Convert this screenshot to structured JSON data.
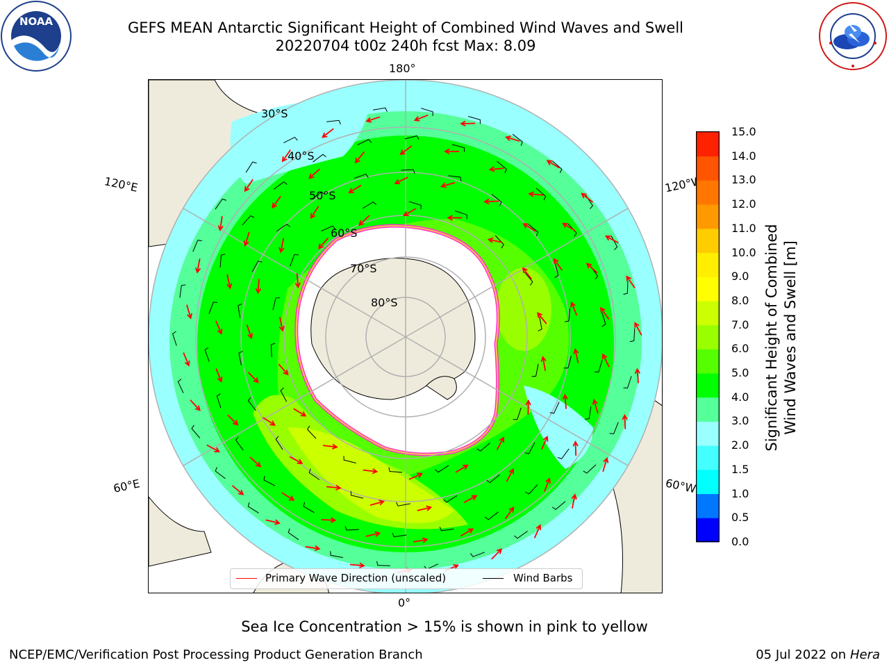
{
  "header": {
    "title_line1": "GEFS MEAN Antarctic Significant Height of Combined Wind Waves and Swell",
    "title_line2": "20220704 t00z 240h fcst   Max: 8.09"
  },
  "logos": {
    "left": "NOAA",
    "left_ring_text": "NATIONAL OCEANIC AND ATMOSPHERIC ADMINISTRATION · U.S. DEPARTMENT OF COMMERCE",
    "right_ring_text": "NATIONAL WEATHER SERVICE"
  },
  "map": {
    "projection": "south-polar-stereographic",
    "longitude_labels": {
      "top": "180°",
      "bottom": "0°",
      "upper_left": "120°E",
      "upper_right": "120°W",
      "lower_left": "60°E",
      "lower_right": "60°W"
    },
    "latitude_labels": [
      "30°S",
      "40°S",
      "50°S",
      "60°S",
      "70°S",
      "80°S"
    ],
    "colors": {
      "land": "#efebdc",
      "sea_ice": "#ffffff",
      "ice_edge": "#ff33cc",
      "ice_edge_inner": "#ffbb55",
      "grid": "#b0b0b0",
      "wave_arrow": "#ff0000",
      "wind_barb": "#000000"
    }
  },
  "legend": {
    "primary_wave_label": "Primary Wave Direction (unscaled)",
    "primary_wave_color": "#ff0000",
    "wind_barb_label": "Wind Barbs",
    "wind_barb_color": "#000000"
  },
  "colorbar": {
    "label_line1": "Significant Height of Combined",
    "label_line2": "Wind Waves and Swell [m]",
    "ticks": [
      "15.0",
      "14.0",
      "13.0",
      "12.0",
      "11.0",
      "10.0",
      "9.0",
      "8.0",
      "7.0",
      "6.0",
      "5.0",
      "4.0",
      "3.0",
      "2.0",
      "1.5",
      "1.0",
      "0.5",
      "0.0"
    ],
    "colors_bottom_to_top": [
      "#0000ff",
      "#0077ff",
      "#00ffff",
      "#44ffff",
      "#99ffff",
      "#55ff99",
      "#00ff00",
      "#55ff00",
      "#99ff00",
      "#ccff00",
      "#ffff00",
      "#ffee00",
      "#ffcc00",
      "#ff9900",
      "#ff7700",
      "#ff5500",
      "#ff2200"
    ]
  },
  "notes": {
    "sea_ice": "Sea Ice Concentration > 15% is shown in pink to yellow",
    "footer_left": "NCEP/EMC/Verification Post Processing Product Generation Branch",
    "footer_date": "05 Jul 2022 on ",
    "footer_machine": "Hera"
  }
}
